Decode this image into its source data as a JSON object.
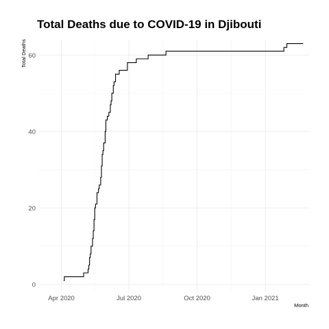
{
  "chart_data": {
    "type": "line",
    "title": "Total Deaths due to COVID-19 in Djibouti",
    "xlabel": "Month",
    "ylabel": "Total Deaths",
    "xlim": [
      "2020-03-01",
      "2021-03-01"
    ],
    "ylim": [
      -2,
      64
    ],
    "grid": true,
    "x_ticks": [
      {
        "date": "2020-04-01",
        "label": "Apr 2020"
      },
      {
        "date": "2020-07-01",
        "label": "Jul 2020"
      },
      {
        "date": "2020-10-01",
        "label": "Oct 2020"
      },
      {
        "date": "2021-01-01",
        "label": "Jan 2021"
      }
    ],
    "y_ticks": [
      0,
      20,
      40,
      60
    ],
    "series": [
      {
        "x": [
          "2020-04-04",
          "2020-04-05",
          "2020-04-30",
          "2020-05-01",
          "2020-05-06",
          "2020-05-07",
          "2020-05-08",
          "2020-05-09",
          "2020-05-10",
          "2020-05-11",
          "2020-05-12",
          "2020-05-13",
          "2020-05-14",
          "2020-05-15",
          "2020-05-16",
          "2020-05-17",
          "2020-05-19",
          "2020-05-20",
          "2020-05-21",
          "2020-05-22",
          "2020-05-23",
          "2020-05-24",
          "2020-05-25",
          "2020-05-26",
          "2020-05-27",
          "2020-05-28",
          "2020-05-30",
          "2020-05-31",
          "2020-06-01",
          "2020-06-02",
          "2020-06-04",
          "2020-06-05",
          "2020-06-06",
          "2020-06-07",
          "2020-06-08",
          "2020-06-10",
          "2020-06-11",
          "2020-06-13",
          "2020-06-15",
          "2020-06-18",
          "2020-06-22",
          "2020-06-23",
          "2020-06-29",
          "2020-07-05",
          "2020-07-10",
          "2020-07-11",
          "2020-07-18",
          "2020-07-27",
          "2020-08-05",
          "2020-08-20",
          "2020-08-25",
          "2021-01-24",
          "2021-01-26",
          "2021-01-30",
          "2021-02-08",
          "2021-02-21"
        ],
        "y": [
          1,
          2,
          2,
          3,
          3,
          4,
          5,
          7,
          8,
          10,
          10,
          12,
          14,
          17,
          20,
          21,
          24,
          24,
          25,
          26,
          26,
          28,
          31,
          34,
          35,
          37,
          40,
          43,
          43,
          44,
          45,
          45,
          47,
          48,
          50,
          52,
          53,
          55,
          55,
          56,
          56,
          56,
          58,
          58,
          58,
          59,
          59,
          60,
          60,
          61,
          61,
          61,
          62,
          63,
          63,
          63
        ]
      }
    ]
  }
}
